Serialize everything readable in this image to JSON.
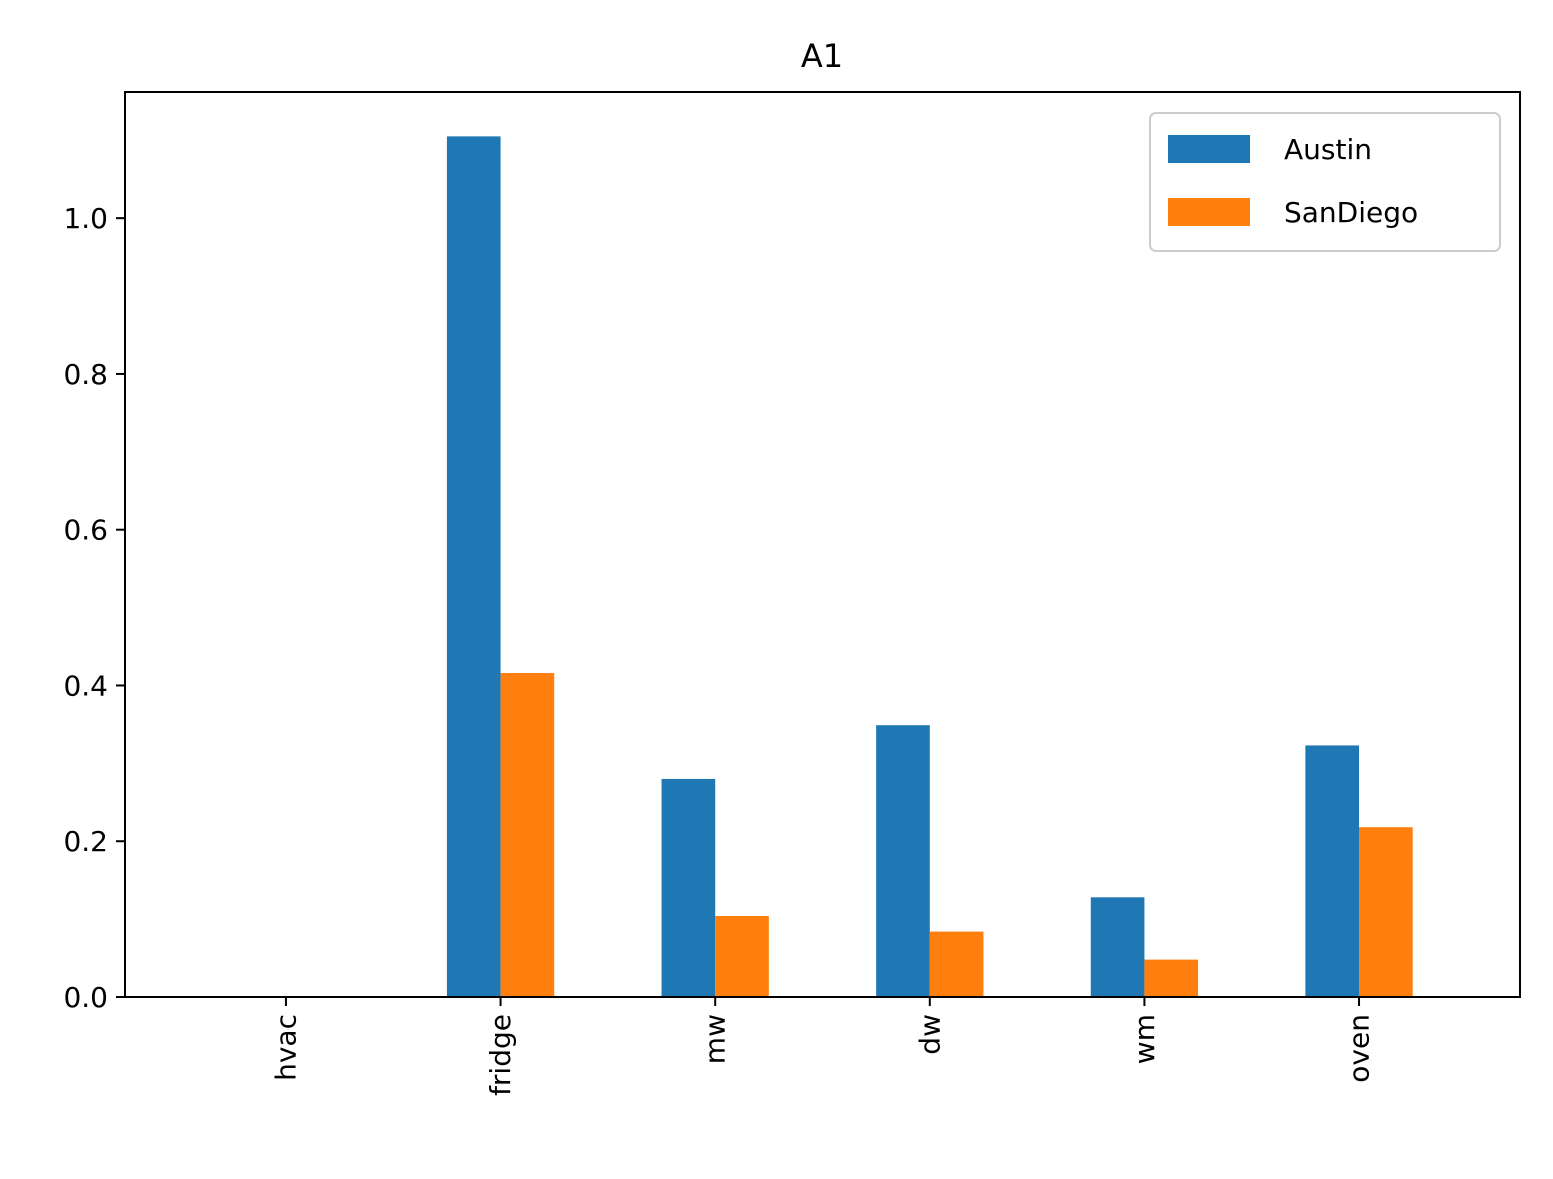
{
  "chart_data": {
    "type": "bar",
    "title": "A1",
    "xlabel": "",
    "ylabel": "",
    "categories": [
      "hvac",
      "fridge",
      "mw",
      "dw",
      "wm",
      "oven"
    ],
    "series": [
      {
        "name": "Austin",
        "color": "#1f77b4",
        "values": [
          0.0,
          1.105,
          0.28,
          0.349,
          0.128,
          0.323
        ]
      },
      {
        "name": "SanDiego",
        "color": "#ff7f0e",
        "values": [
          0.0,
          0.416,
          0.104,
          0.084,
          0.048,
          0.218
        ]
      }
    ],
    "ylim": [
      0,
      1.162
    ],
    "yticks": [
      0.0,
      0.2,
      0.4,
      0.6,
      0.8,
      1.0
    ],
    "ytick_labels": [
      "0.0",
      "0.2",
      "0.4",
      "0.6",
      "0.8",
      "1.0"
    ],
    "xtick_rotation": "vertical",
    "legend": {
      "position": "upper right"
    },
    "grid": false
  }
}
